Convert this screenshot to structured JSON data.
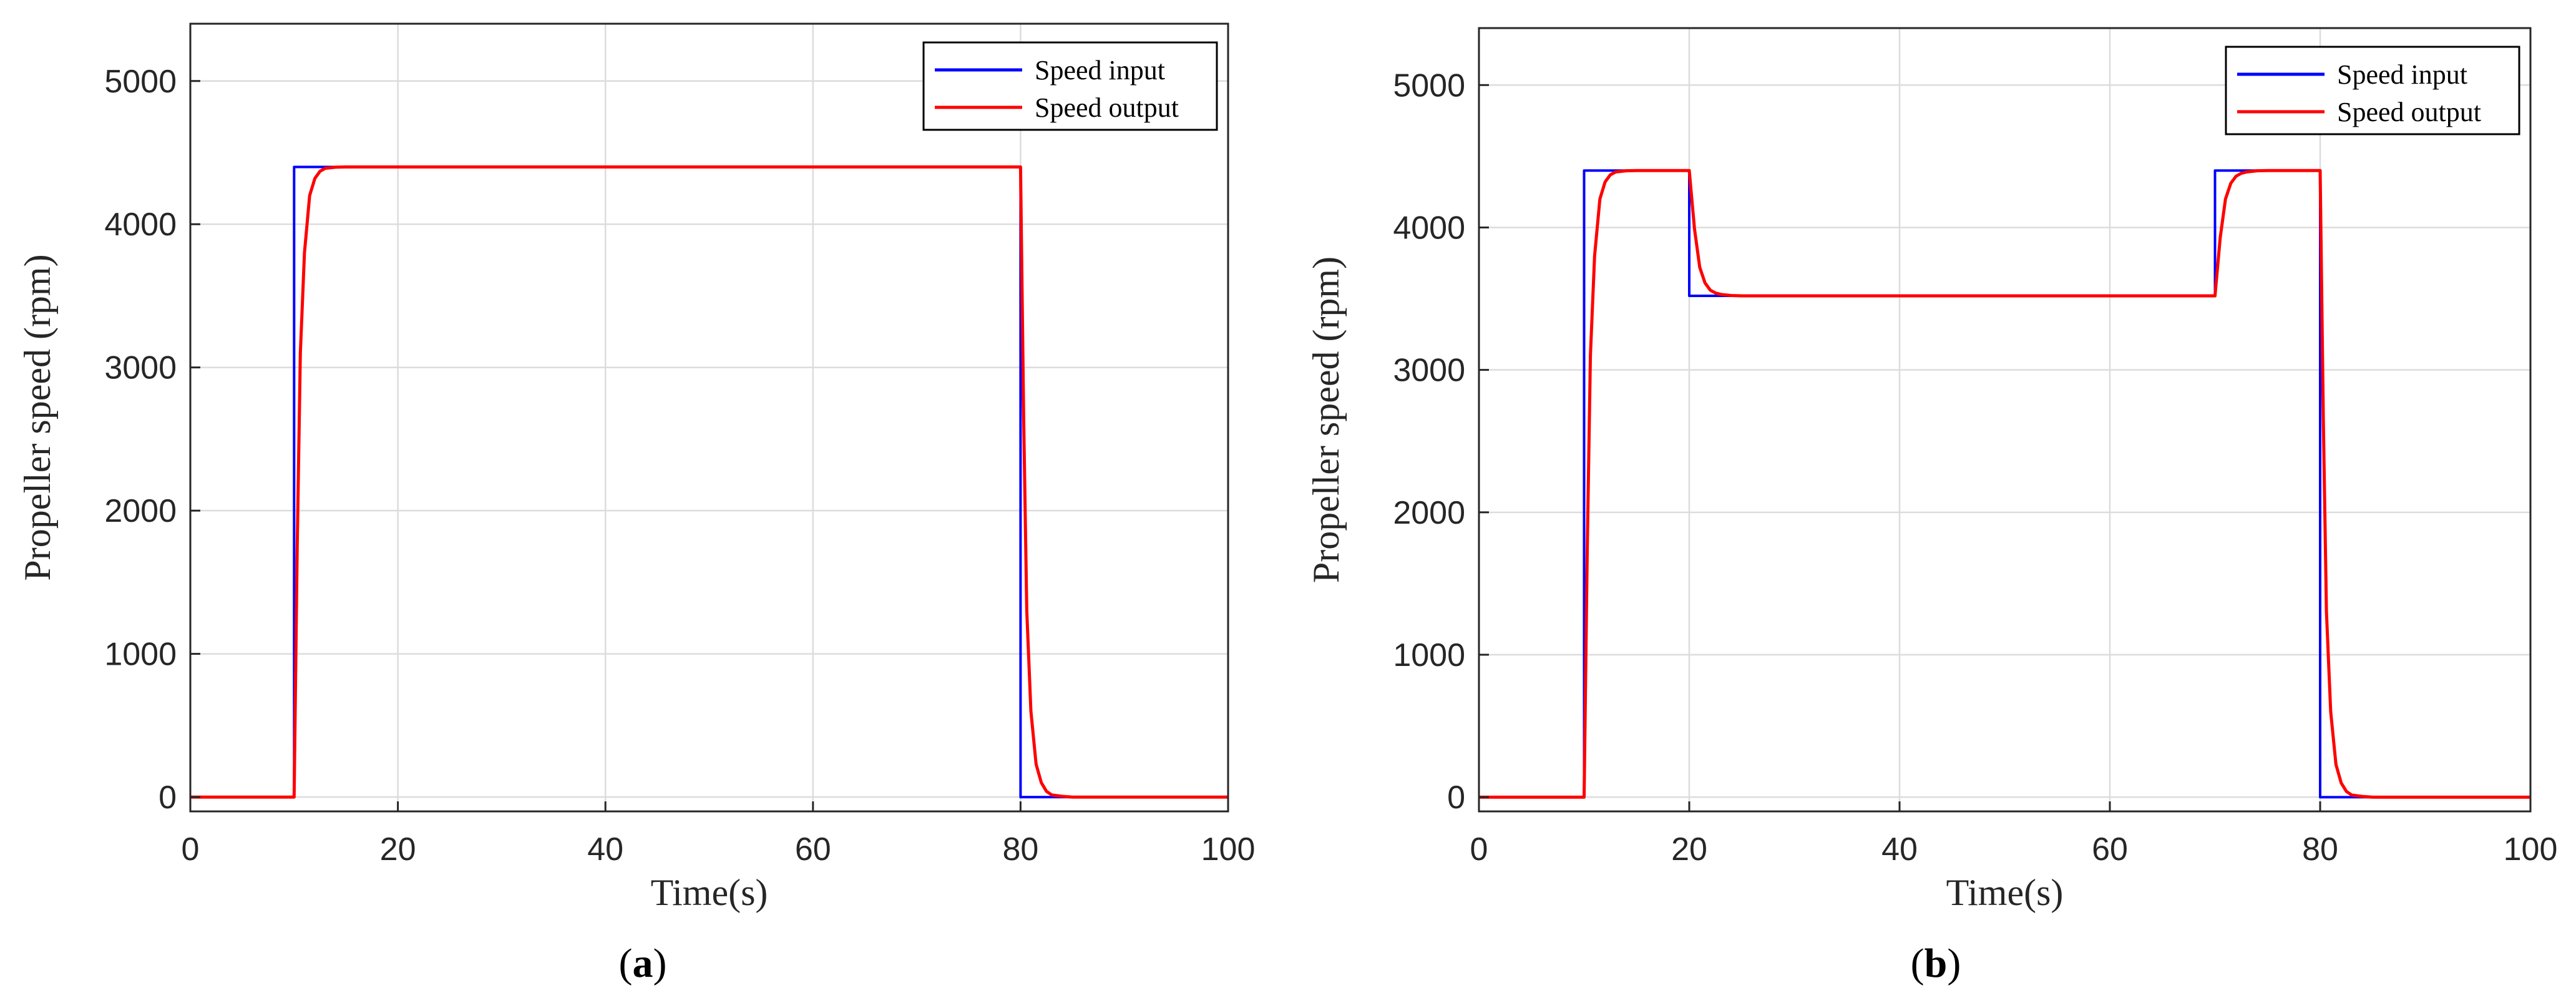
{
  "chart_data": [
    {
      "type": "line",
      "panel_label": "a",
      "xlabel": "Time(s)",
      "ylabel": "Propeller speed (rpm)",
      "xlim": [
        0,
        100
      ],
      "ylim": [
        -100,
        5400
      ],
      "xticks": [
        0,
        20,
        40,
        60,
        80,
        100
      ],
      "yticks": [
        0,
        1000,
        2000,
        3000,
        4000,
        5000
      ],
      "grid": true,
      "legend_position": "top-right",
      "series": [
        {
          "name": "Speed input",
          "color": "#0000ff",
          "x": [
            0,
            10,
            10,
            80,
            80,
            100
          ],
          "y": [
            0,
            0,
            4400,
            4400,
            0,
            0
          ]
        },
        {
          "name": "Speed output",
          "color": "#ff0000",
          "x": [
            0,
            10,
            10.3,
            10.6,
            11,
            11.5,
            12,
            12.5,
            13,
            14,
            15,
            80,
            80.3,
            80.6,
            81,
            81.5,
            82,
            82.5,
            83,
            84,
            85,
            100
          ],
          "y": [
            0,
            0,
            1750,
            3100,
            3800,
            4200,
            4320,
            4370,
            4390,
            4398,
            4400,
            4400,
            2650,
            1300,
            600,
            230,
            100,
            40,
            15,
            5,
            0,
            0
          ]
        }
      ]
    },
    {
      "type": "line",
      "panel_label": "b",
      "xlabel": "Time(s)",
      "ylabel": "Propeller speed (rpm)",
      "xlim": [
        0,
        100
      ],
      "ylim": [
        -100,
        5400
      ],
      "xticks": [
        0,
        20,
        40,
        60,
        80,
        100
      ],
      "yticks": [
        0,
        1000,
        2000,
        3000,
        4000,
        5000
      ],
      "grid": true,
      "legend_position": "top-right",
      "series": [
        {
          "name": "Speed input",
          "color": "#0000ff",
          "x": [
            0,
            10,
            10,
            20,
            20,
            70,
            70,
            80,
            80,
            100
          ],
          "y": [
            0,
            0,
            4400,
            4400,
            3520,
            3520,
            4400,
            4400,
            0,
            0
          ]
        },
        {
          "name": "Speed output",
          "color": "#ff0000",
          "x": [
            0,
            10,
            10.3,
            10.6,
            11,
            11.5,
            12,
            12.5,
            13,
            14,
            15,
            20,
            20.5,
            21,
            21.5,
            22,
            22.5,
            23,
            24,
            25,
            70,
            70.5,
            71,
            71.5,
            72,
            72.5,
            73,
            74,
            75,
            80,
            80.3,
            80.6,
            81,
            81.5,
            82,
            82.5,
            83,
            84,
            85,
            100
          ],
          "y": [
            0,
            0,
            1750,
            3100,
            3800,
            4200,
            4320,
            4370,
            4390,
            4398,
            4400,
            4400,
            3990,
            3720,
            3610,
            3560,
            3540,
            3530,
            3522,
            3520,
            3520,
            3930,
            4200,
            4310,
            4360,
            4380,
            4390,
            4398,
            4400,
            4400,
            2650,
            1300,
            600,
            230,
            100,
            40,
            15,
            5,
            0,
            0
          ]
        }
      ]
    }
  ]
}
